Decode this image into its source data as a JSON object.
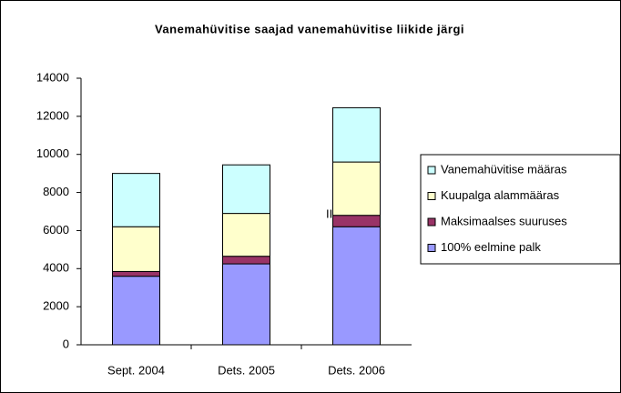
{
  "chart_data": {
    "type": "stacked_bar",
    "title": "Vanemahüvitise saajad vanemahüvitise liikide järgi",
    "categories": [
      "Sept. 2004",
      "Dets. 2005",
      "Dets. 2006"
    ],
    "series": [
      {
        "name": "100% eelmine palk",
        "color": "#9999ff",
        "values": [
          3600,
          4250,
          6200
        ]
      },
      {
        "name": "Maksimaalses suuruses",
        "color": "#993366",
        "values": [
          250,
          400,
          600
        ]
      },
      {
        "name": "Kuupalga alammääras",
        "color": "#ffffcc",
        "values": [
          2350,
          2250,
          2800
        ]
      },
      {
        "name": "Vanemahüvitise määras",
        "color": "#ccffff",
        "values": [
          2800,
          2550,
          2850
        ]
      }
    ],
    "annotations": [
      "III"
    ],
    "ylim": [
      0,
      14000
    ],
    "yticks": [
      0,
      2000,
      4000,
      6000,
      8000,
      10000,
      12000,
      14000
    ],
    "grid": false,
    "legend": "right"
  }
}
